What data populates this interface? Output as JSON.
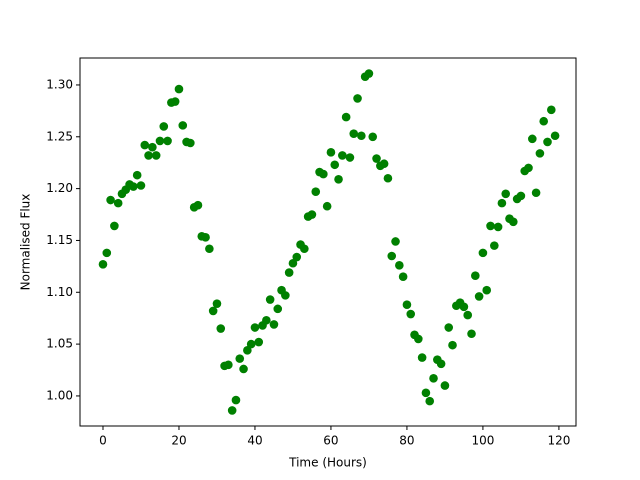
{
  "chart_data": {
    "type": "scatter",
    "xlabel": "Time (Hours)",
    "ylabel": "Normalised Flux",
    "color": "#008000",
    "x": [
      0,
      1,
      2,
      3,
      4,
      5,
      6,
      7,
      8,
      9,
      10,
      11,
      12,
      13,
      14,
      15,
      16,
      17,
      18,
      19,
      20,
      21,
      22,
      23,
      24,
      25,
      26,
      27,
      28,
      29,
      30,
      31,
      32,
      33,
      34,
      35,
      36,
      37,
      38,
      39,
      40,
      41,
      42,
      43,
      44,
      45,
      46,
      47,
      48,
      49,
      50,
      51,
      52,
      53,
      54,
      55,
      56,
      57,
      58,
      59,
      60,
      61,
      62,
      63,
      64,
      65,
      66,
      67,
      68,
      69,
      70,
      71,
      72,
      73,
      74,
      75,
      76,
      77,
      78,
      79,
      80,
      81,
      82,
      83,
      84,
      85,
      86,
      87,
      88,
      89,
      90,
      91,
      92,
      93,
      94,
      95,
      96,
      97,
      98,
      99,
      100,
      101,
      102,
      103,
      104,
      105,
      106,
      107,
      108,
      109,
      110,
      111,
      112,
      113,
      114,
      115,
      116,
      117,
      118,
      119
    ],
    "values": [
      1.127,
      1.138,
      1.189,
      1.164,
      1.186,
      1.195,
      1.199,
      1.204,
      1.202,
      1.213,
      1.203,
      1.242,
      1.232,
      1.24,
      1.232,
      1.246,
      1.26,
      1.246,
      1.283,
      1.284,
      1.296,
      1.261,
      1.245,
      1.244,
      1.182,
      1.184,
      1.154,
      1.153,
      1.142,
      1.082,
      1.089,
      1.065,
      1.029,
      1.03,
      0.986,
      0.996,
      1.036,
      1.026,
      1.044,
      1.05,
      1.066,
      1.052,
      1.068,
      1.073,
      1.093,
      1.069,
      1.084,
      1.102,
      1.097,
      1.119,
      1.128,
      1.134,
      1.146,
      1.142,
      1.173,
      1.175,
      1.197,
      1.216,
      1.214,
      1.183,
      1.235,
      1.223,
      1.209,
      1.232,
      1.269,
      1.23,
      1.253,
      1.287,
      1.251,
      1.308,
      1.311,
      1.25,
      1.229,
      1.222,
      1.224,
      1.21,
      1.135,
      1.149,
      1.126,
      1.115,
      1.088,
      1.079,
      1.059,
      1.055,
      1.037,
      1.003,
      0.995,
      1.017,
      1.035,
      1.031,
      1.01,
      1.066,
      1.049,
      1.087,
      1.09,
      1.086,
      1.078,
      1.06,
      1.116,
      1.096,
      1.138,
      1.102,
      1.164,
      1.145,
      1.163,
      1.186,
      1.195,
      1.171,
      1.168,
      1.19,
      1.193,
      1.217,
      1.22,
      1.248,
      1.196,
      1.234,
      1.265,
      1.245,
      1.276,
      1.251
    ],
    "xlim": [
      -6.05,
      124.5
    ],
    "ylim": [
      0.971,
      1.326
    ],
    "xticks": [
      0,
      20,
      40,
      60,
      80,
      100,
      120
    ],
    "yticks": [
      {
        "value": 1.0,
        "label": "1.00"
      },
      {
        "value": 1.05,
        "label": "1.05"
      },
      {
        "value": 1.1,
        "label": "1.10"
      },
      {
        "value": 1.15,
        "label": "1.15"
      },
      {
        "value": 1.2,
        "label": "1.20"
      },
      {
        "value": 1.25,
        "label": "1.25"
      },
      {
        "value": 1.3,
        "label": "1.30"
      }
    ]
  }
}
